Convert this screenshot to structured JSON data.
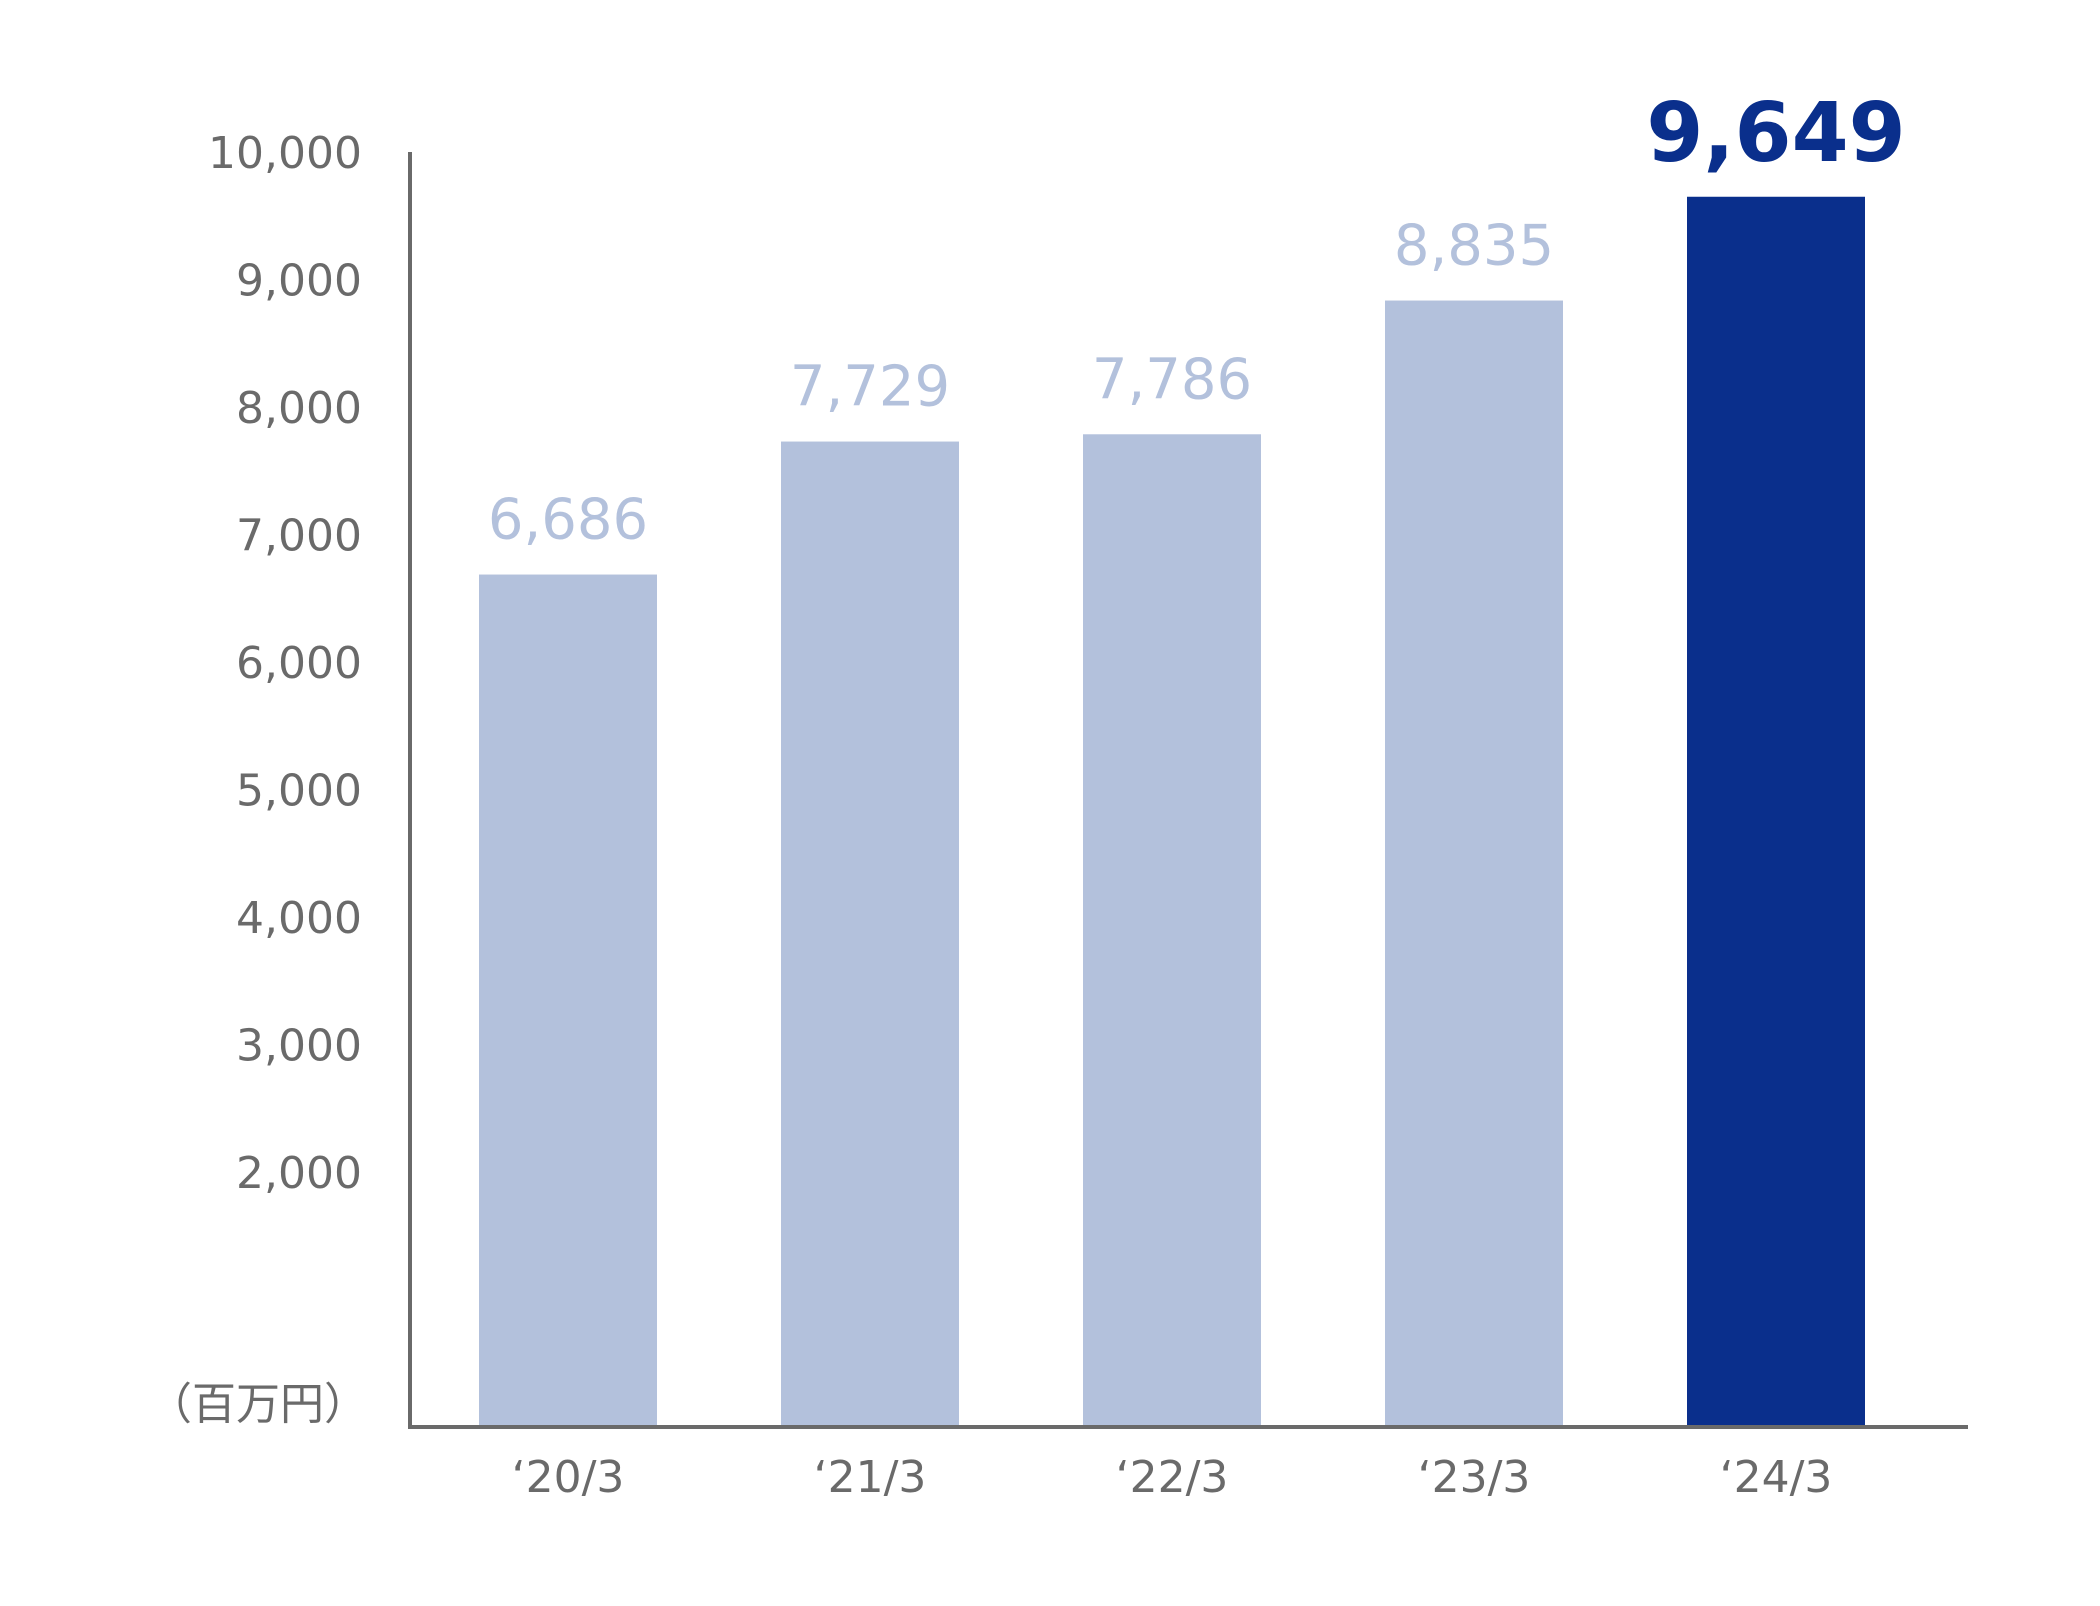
{
  "chart_data": {
    "type": "bar",
    "categories": [
      "‘20/3",
      "‘21/3",
      "‘22/3",
      "‘23/3",
      "‘24/3"
    ],
    "values": [
      6686,
      7729,
      7786,
      8835,
      9649
    ],
    "value_labels": [
      "6,686",
      "7,729",
      "7,786",
      "8,835",
      "9,649"
    ],
    "highlight_index": 4,
    "yticks": [
      2000,
      3000,
      4000,
      5000,
      6000,
      7000,
      8000,
      9000,
      10000
    ],
    "ytick_labels": [
      "2,000",
      "3,000",
      "4,000",
      "5,000",
      "6,000",
      "7,000",
      "8,000",
      "9,000",
      "10,000"
    ],
    "ylim": [
      0,
      10000
    ],
    "unit_label": "（百万円）",
    "title": "",
    "xlabel": "",
    "ylabel": "",
    "grid": false,
    "colors": {
      "bar": "#b3c1dc",
      "bar_highlight": "#0a2f8c",
      "value_label": "#b3c1dc",
      "value_label_highlight": "#0a2f8c",
      "axis": "#6a6a6a"
    }
  }
}
